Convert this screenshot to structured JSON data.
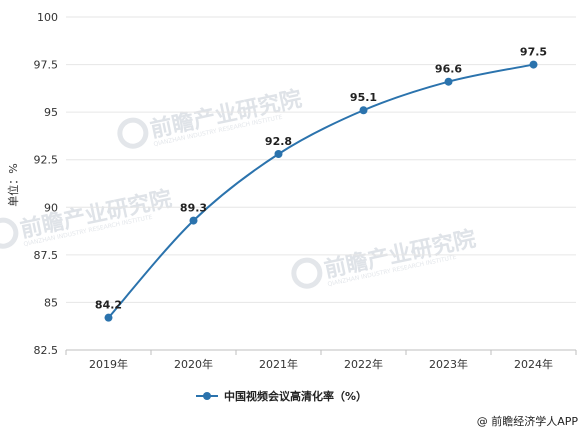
{
  "chart_data": {
    "type": "line",
    "categories": [
      "2019年",
      "2020年",
      "2021年",
      "2022年",
      "2023年",
      "2024年"
    ],
    "series": [
      {
        "name": "中国视频会议高清化率（%）",
        "values": [
          84.2,
          89.3,
          92.8,
          95.1,
          96.6,
          97.5
        ]
      }
    ],
    "ylabel": "单位：%",
    "ylim": [
      82.5,
      100
    ],
    "yticks": [
      82.5,
      85,
      87.5,
      90,
      92.5,
      95,
      97.5,
      100
    ],
    "grid": true,
    "legend": "bottom",
    "color": "#2b73ad"
  },
  "watermark": {
    "text": "前瞻产业研究院",
    "subtext": "QIANZHAN INDUSTRY RESEARCH INSTITUTE"
  },
  "credit": "@ 前瞻经济学人APP"
}
